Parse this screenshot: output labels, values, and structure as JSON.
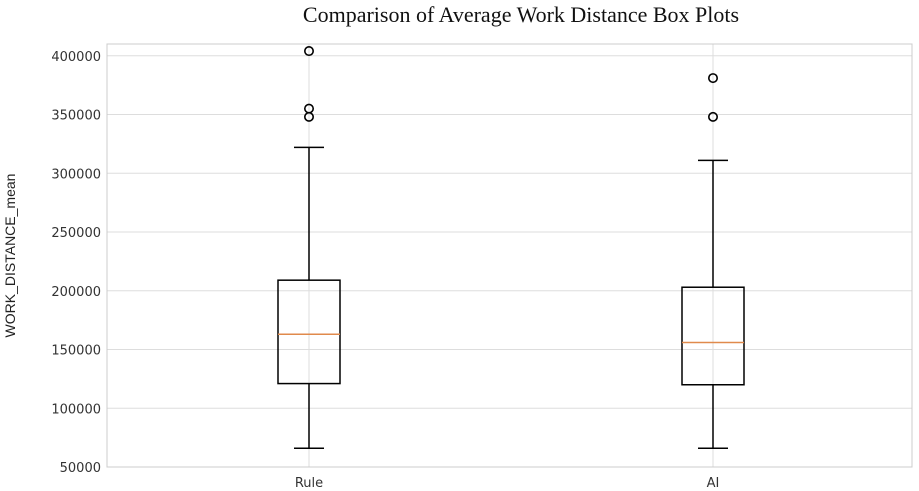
{
  "chart_data": {
    "type": "boxplot",
    "title": "Comparison of Average Work Distance Box Plots",
    "xlabel": "",
    "ylabel": "WORK_DISTANCE_mean",
    "ylim": [
      50000,
      410000
    ],
    "yticks": [
      50000,
      100000,
      150000,
      200000,
      250000,
      300000,
      350000,
      400000
    ],
    "yticklabels": [
      "50000",
      "100000",
      "150000",
      "200000",
      "250000",
      "300000",
      "350000",
      "400000"
    ],
    "grid": true,
    "colors": {
      "box": "#000000",
      "median": "#e08a4c",
      "grid": "#dddddd",
      "frame": "#cccccc"
    },
    "categories": [
      "Rule",
      "AI"
    ],
    "boxes": [
      {
        "category": "Rule",
        "whisker_low": 66000,
        "q1": 121000,
        "median": 163000,
        "q3": 209000,
        "whisker_high": 322000,
        "outliers": [
          348000,
          355000,
          404000
        ]
      },
      {
        "category": "AI",
        "whisker_low": 66000,
        "q1": 120000,
        "median": 156000,
        "q3": 203000,
        "whisker_high": 311000,
        "outliers": [
          348000,
          381000
        ]
      }
    ]
  }
}
